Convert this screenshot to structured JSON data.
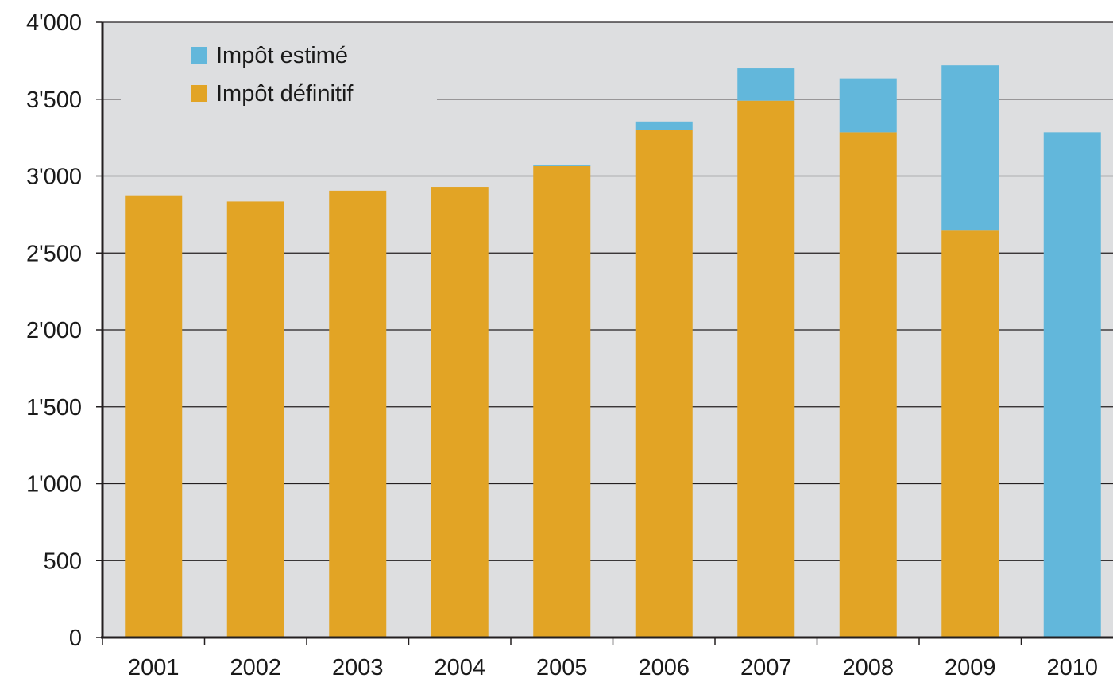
{
  "chart_data": {
    "type": "bar",
    "stacked": true,
    "categories": [
      "2001",
      "2002",
      "2003",
      "2004",
      "2005",
      "2006",
      "2007",
      "2008",
      "2009",
      "2010"
    ],
    "series": [
      {
        "name": "Impôt définitif",
        "color": "#E2A425",
        "values": [
          2875,
          2835,
          2905,
          2930,
          3065,
          3300,
          3490,
          3285,
          2650,
          0
        ]
      },
      {
        "name": "Impôt estimé",
        "color": "#62B7DB",
        "values": [
          0,
          0,
          0,
          0,
          10,
          55,
          210,
          350,
          1070,
          3285
        ]
      }
    ],
    "legend_order": [
      "Impôt estimé",
      "Impôt définitif"
    ],
    "legend_position": "top-left",
    "ylim": [
      0,
      4000
    ],
    "yticks": [
      {
        "value": 0,
        "label": "0"
      },
      {
        "value": 500,
        "label": "500"
      },
      {
        "value": 1000,
        "label": "1'000"
      },
      {
        "value": 1500,
        "label": "1'500"
      },
      {
        "value": 2000,
        "label": "2'000"
      },
      {
        "value": 2500,
        "label": "2'500"
      },
      {
        "value": 3000,
        "label": "3'000"
      },
      {
        "value": 3500,
        "label": "3'500"
      },
      {
        "value": 4000,
        "label": "4'000"
      }
    ],
    "grid": true,
    "plot_background": "#DDDEE0",
    "axis_color": "#231F20",
    "grid_color": "#231F20"
  }
}
